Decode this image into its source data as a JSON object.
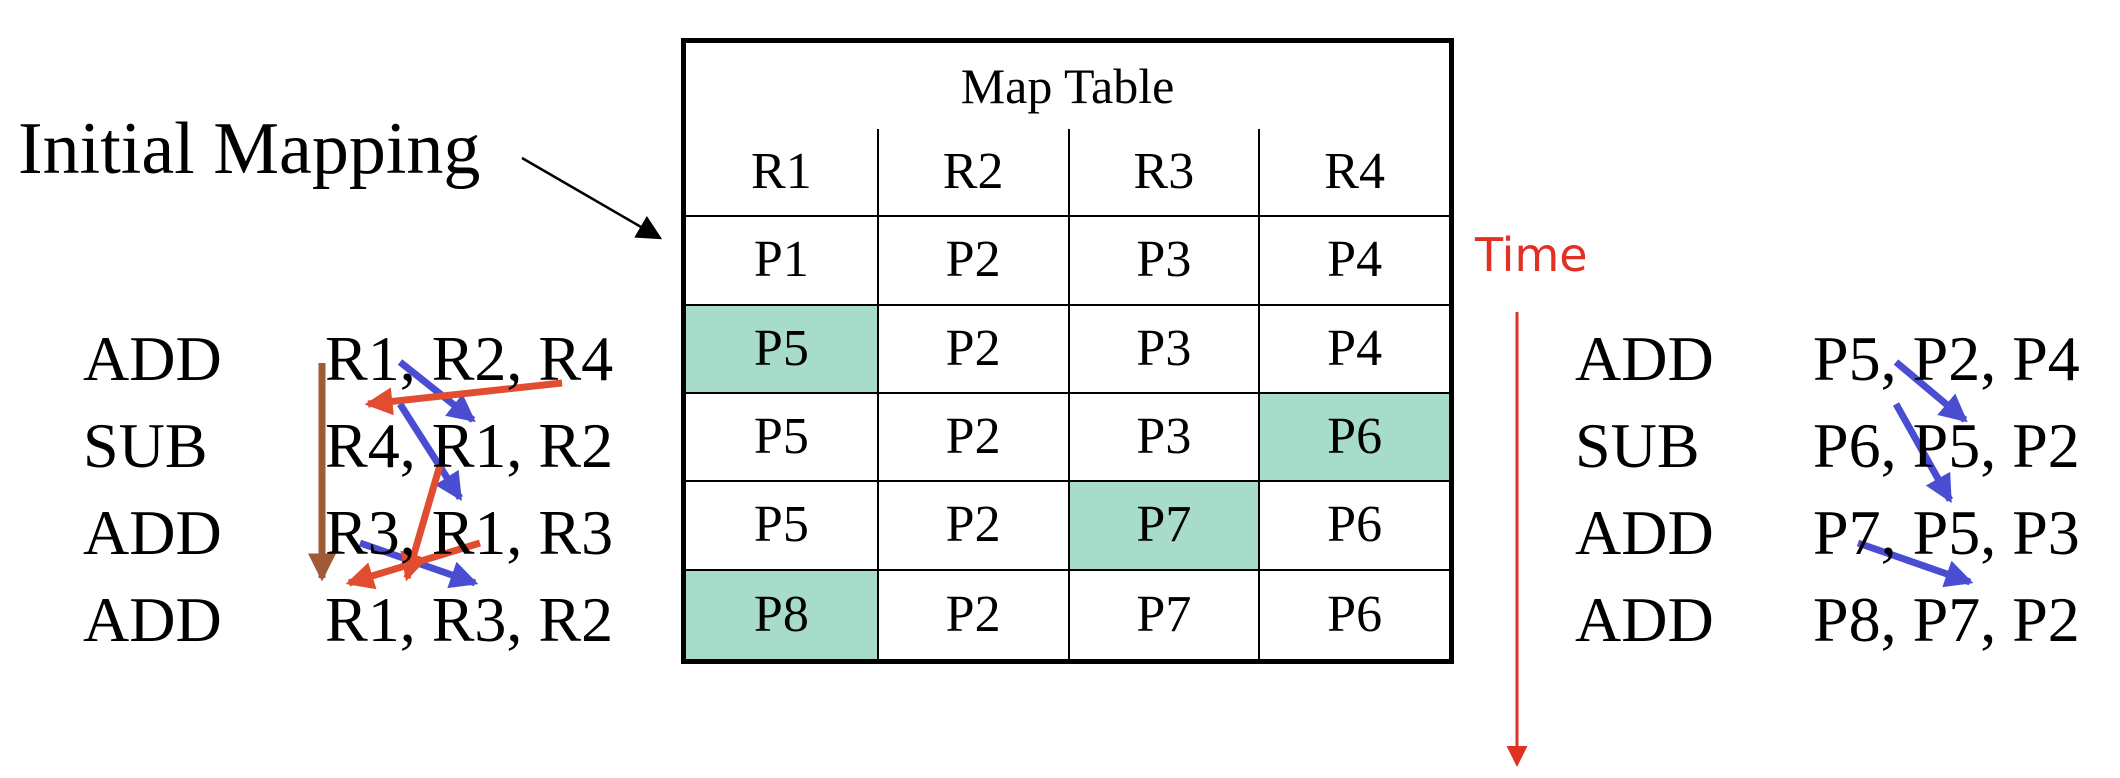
{
  "initial_label": "Initial Mapping",
  "time_label": "Time",
  "map_table": {
    "title": "Map Table",
    "headers": [
      "R1",
      "R2",
      "R3",
      "R4"
    ],
    "rows": [
      [
        "P1",
        "P2",
        "P3",
        "P4"
      ],
      [
        "P5",
        "P2",
        "P3",
        "P4"
      ],
      [
        "P5",
        "P2",
        "P3",
        "P6"
      ],
      [
        "P5",
        "P2",
        "P7",
        "P6"
      ],
      [
        "P8",
        "P2",
        "P7",
        "P6"
      ]
    ],
    "highlight_color": "#a6dcc9"
  },
  "original_code": [
    {
      "op": "ADD",
      "args": "R1, R2, R4"
    },
    {
      "op": "SUB",
      "args": "R4, R1, R2"
    },
    {
      "op": "ADD",
      "args": "R3, R1, R3"
    },
    {
      "op": "ADD",
      "args": "R1, R3, R2"
    }
  ],
  "renamed_code": [
    {
      "op": "ADD",
      "args": "P5, P2, P4"
    },
    {
      "op": "SUB",
      "args": "P6, P5, P2"
    },
    {
      "op": "ADD",
      "args": "P7, P5, P3"
    },
    {
      "op": "ADD",
      "args": "P8, P7, P2"
    }
  ],
  "colors": {
    "raw_dependency": "#4a4dd1",
    "war_dependency": "#e14d31",
    "waw_dependency": "#a05a35",
    "time_arrow": "#e03124",
    "pointer_arrow": "#000000"
  }
}
